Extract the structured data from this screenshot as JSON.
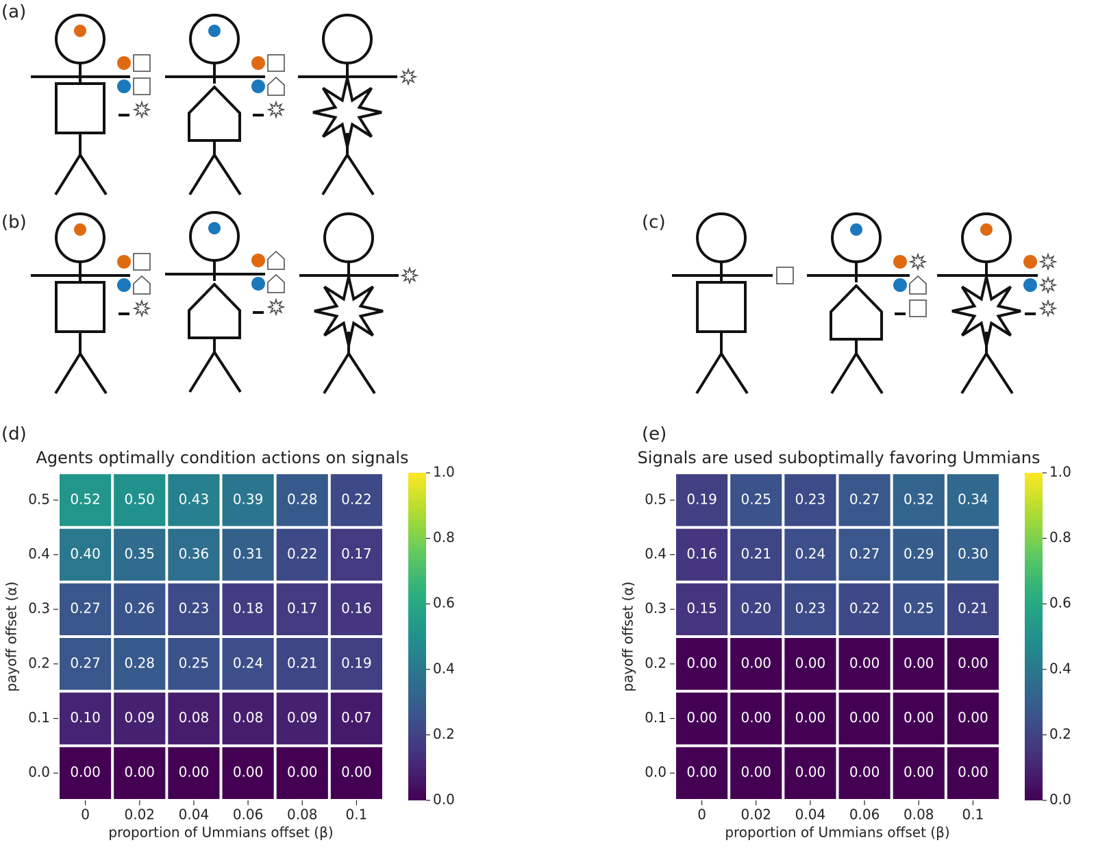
{
  "panel_labels": [
    "(a)",
    "(b)",
    "(c)",
    "(d)",
    "(e)"
  ],
  "chart_data": [
    {
      "type": "heatmap",
      "title": "Agents optimally condition actions on signals",
      "x_label": "proportion of Ummians offset (β)",
      "y_label": "payoff offset (α)",
      "x_categories": [
        "0",
        "0.02",
        "0.04",
        "0.06",
        "0.08",
        "0.1"
      ],
      "y_categories": [
        "0.5",
        "0.4",
        "0.3",
        "0.2",
        "0.1",
        "0.0"
      ],
      "values": [
        [
          0.52,
          0.5,
          0.43,
          0.39,
          0.28,
          0.22
        ],
        [
          0.4,
          0.35,
          0.36,
          0.31,
          0.22,
          0.17
        ],
        [
          0.27,
          0.26,
          0.23,
          0.18,
          0.17,
          0.16
        ],
        [
          0.27,
          0.28,
          0.25,
          0.24,
          0.21,
          0.19
        ],
        [
          0.1,
          0.09,
          0.08,
          0.08,
          0.09,
          0.07
        ],
        [
          0,
          0,
          0,
          0,
          0,
          0
        ]
      ],
      "value_labels": [
        [
          "0.52",
          "0.50",
          "0.43",
          "0.39",
          "0.28",
          "0.22"
        ],
        [
          "0.40",
          "0.35",
          "0.36",
          "0.31",
          "0.22",
          "0.17"
        ],
        [
          "0.27",
          "0.26",
          "0.23",
          "0.18",
          "0.17",
          "0.16"
        ],
        [
          "0.27",
          "0.28",
          "0.25",
          "0.24",
          "0.21",
          "0.19"
        ],
        [
          "0.10",
          "0.09",
          "0.08",
          "0.08",
          "0.09",
          "0.07"
        ],
        [
          "0.00",
          "0.00",
          "0.00",
          "0.00",
          "0.00",
          "0.00"
        ]
      ],
      "colormap": "viridis",
      "colorbar_lim": [
        0,
        1
      ],
      "colorbar_ticks": [
        {
          "value": 0,
          "label": "0.0"
        },
        0.2,
        0.4,
        0.6,
        0.8,
        {
          "value": 1,
          "label": "1.0"
        }
      ]
    },
    {
      "type": "heatmap",
      "title": "Signals are used suboptimally favoring Ummians",
      "x_label": "proportion of Ummians offset (β)",
      "y_label": "payoff offset (α)",
      "x_categories": [
        "0",
        "0.02",
        "0.04",
        "0.06",
        "0.08",
        "0.1"
      ],
      "y_categories": [
        "0.5",
        "0.4",
        "0.3",
        "0.2",
        "0.1",
        "0.0"
      ],
      "values": [
        [
          0.19,
          0.25,
          0.23,
          0.27,
          0.32,
          0.34
        ],
        [
          0.16,
          0.21,
          0.24,
          0.27,
          0.29,
          0.3
        ],
        [
          0.15,
          0.2,
          0.23,
          0.22,
          0.25,
          0.21
        ],
        [
          0,
          0,
          0,
          0,
          0,
          0
        ],
        [
          0,
          0,
          0,
          0,
          0,
          0
        ],
        [
          0,
          0,
          0,
          0,
          0,
          0
        ]
      ],
      "value_labels": [
        [
          "0.19",
          "0.25",
          "0.23",
          "0.27",
          "0.32",
          "0.34"
        ],
        [
          "0.16",
          "0.21",
          "0.24",
          "0.27",
          "0.29",
          "0.30"
        ],
        [
          "0.15",
          "0.20",
          "0.23",
          "0.22",
          "0.25",
          "0.21"
        ],
        [
          "0.00",
          "0.00",
          "0.00",
          "0.00",
          "0.00",
          "0.00"
        ],
        [
          "0.00",
          "0.00",
          "0.00",
          "0.00",
          "0.00",
          "0.00"
        ],
        [
          "0.00",
          "0.00",
          "0.00",
          "0.00",
          "0.00",
          "0.00"
        ]
      ],
      "colormap": "viridis",
      "colorbar_lim": [
        0,
        1
      ],
      "colorbar_ticks": [
        {
          "value": 0,
          "label": "0.0"
        },
        0.2,
        0.4,
        0.6,
        0.8,
        {
          "value": 1,
          "label": "1.0"
        }
      ]
    }
  ]
}
